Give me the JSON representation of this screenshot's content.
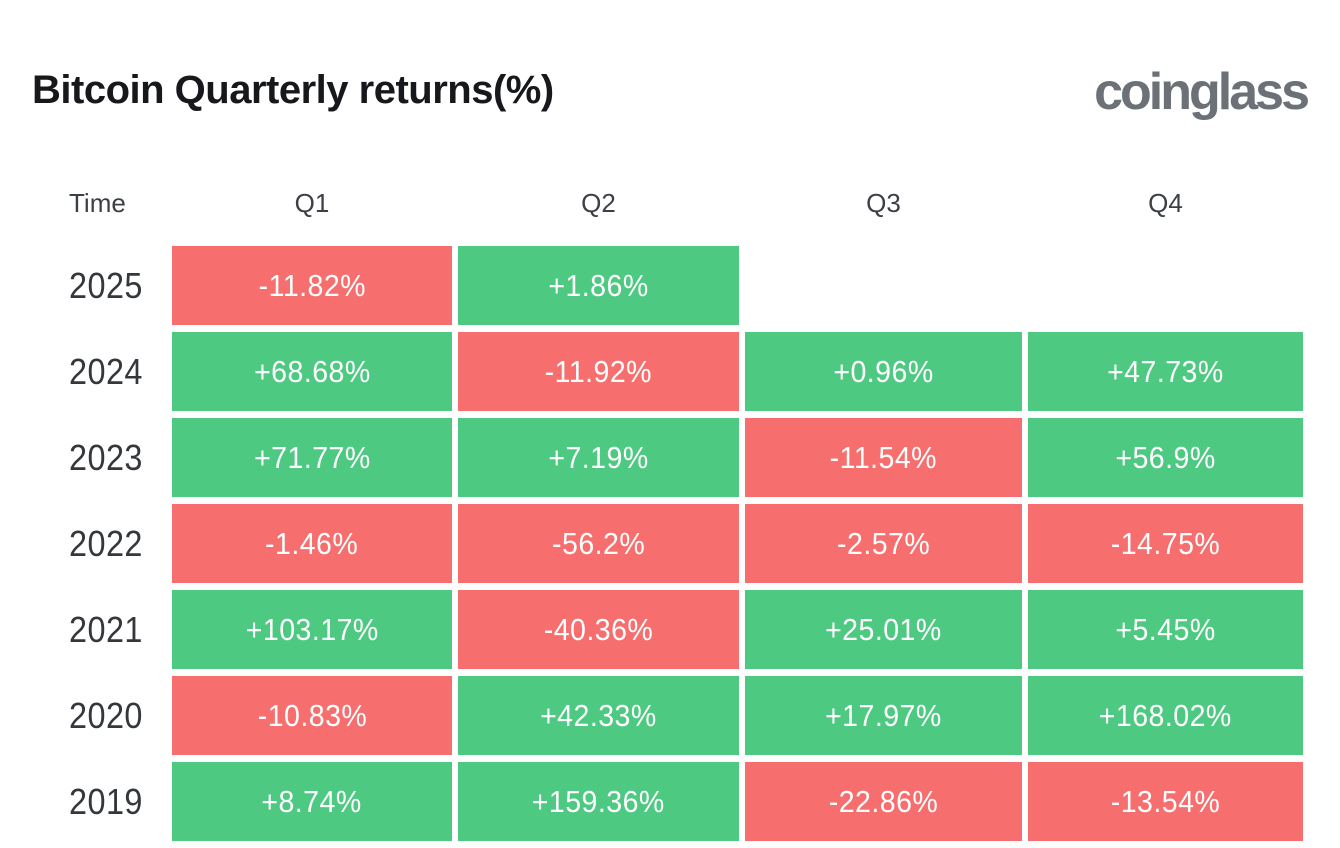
{
  "header": {
    "title": "Bitcoin Quarterly returns(%)",
    "brand": "coinglass"
  },
  "colors": {
    "positive": "#4dc981",
    "negative": "#f66e6e",
    "title_text": "#17181b",
    "label_text": "#3c4046",
    "brand_text": "#6b7177",
    "background": "#ffffff",
    "cell_text": "#ffffff"
  },
  "chart_data": {
    "type": "heatmap",
    "title": "Bitcoin Quarterly returns(%)",
    "unit": "%",
    "legend_position": "none",
    "grid": false,
    "columns": [
      "Time",
      "Q1",
      "Q2",
      "Q3",
      "Q4"
    ],
    "positive_color": "#4dc981",
    "negative_color": "#f66e6e",
    "rows": [
      {
        "year": "2025",
        "cells": [
          {
            "label": "-11.82%",
            "value": -11.82,
            "tone": "negative"
          },
          {
            "label": "+1.86%",
            "value": 1.86,
            "tone": "positive"
          },
          {
            "label": "",
            "value": null,
            "tone": "empty"
          },
          {
            "label": "",
            "value": null,
            "tone": "empty"
          }
        ]
      },
      {
        "year": "2024",
        "cells": [
          {
            "label": "+68.68%",
            "value": 68.68,
            "tone": "positive"
          },
          {
            "label": "-11.92%",
            "value": -11.92,
            "tone": "negative"
          },
          {
            "label": "+0.96%",
            "value": 0.96,
            "tone": "positive"
          },
          {
            "label": "+47.73%",
            "value": 47.73,
            "tone": "positive"
          }
        ]
      },
      {
        "year": "2023",
        "cells": [
          {
            "label": "+71.77%",
            "value": 71.77,
            "tone": "positive"
          },
          {
            "label": "+7.19%",
            "value": 7.19,
            "tone": "positive"
          },
          {
            "label": "-11.54%",
            "value": -11.54,
            "tone": "negative"
          },
          {
            "label": "+56.9%",
            "value": 56.9,
            "tone": "positive"
          }
        ]
      },
      {
        "year": "2022",
        "cells": [
          {
            "label": "-1.46%",
            "value": -1.46,
            "tone": "negative"
          },
          {
            "label": "-56.2%",
            "value": -56.2,
            "tone": "negative"
          },
          {
            "label": "-2.57%",
            "value": -2.57,
            "tone": "negative"
          },
          {
            "label": "-14.75%",
            "value": -14.75,
            "tone": "negative"
          }
        ]
      },
      {
        "year": "2021",
        "cells": [
          {
            "label": "+103.17%",
            "value": 103.17,
            "tone": "positive"
          },
          {
            "label": "-40.36%",
            "value": -40.36,
            "tone": "negative"
          },
          {
            "label": "+25.01%",
            "value": 25.01,
            "tone": "positive"
          },
          {
            "label": "+5.45%",
            "value": 5.45,
            "tone": "positive"
          }
        ]
      },
      {
        "year": "2020",
        "cells": [
          {
            "label": "-10.83%",
            "value": -10.83,
            "tone": "negative"
          },
          {
            "label": "+42.33%",
            "value": 42.33,
            "tone": "positive"
          },
          {
            "label": "+17.97%",
            "value": 17.97,
            "tone": "positive"
          },
          {
            "label": "+168.02%",
            "value": 168.02,
            "tone": "positive"
          }
        ]
      },
      {
        "year": "2019",
        "cells": [
          {
            "label": "+8.74%",
            "value": 8.74,
            "tone": "positive"
          },
          {
            "label": "+159.36%",
            "value": 159.36,
            "tone": "positive"
          },
          {
            "label": "-22.86%",
            "value": -22.86,
            "tone": "negative"
          },
          {
            "label": "-13.54%",
            "value": -13.54,
            "tone": "negative"
          }
        ]
      }
    ]
  }
}
